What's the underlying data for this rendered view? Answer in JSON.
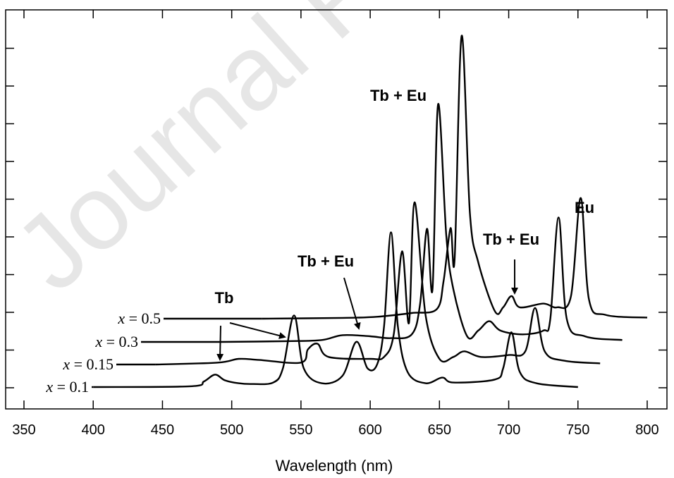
{
  "watermark": "Journal Pre-proof",
  "chart_data": {
    "type": "line",
    "xlabel": "Wavelength (nm)",
    "ylabel": "",
    "xlim": [
      350,
      800
    ],
    "x_ticks": [
      350,
      400,
      450,
      500,
      550,
      600,
      650,
      700,
      750,
      800
    ],
    "y_axis_tick_labels": "none",
    "grid": false,
    "layout_note": "spectra vertically offset and shifted right for each composition (waterfall)",
    "series": [
      {
        "name": "x = 0.1",
        "var": "x",
        "value": "= 0.1",
        "points": [
          [
            400,
            0
          ],
          [
            470,
            0.02
          ],
          [
            480,
            0.15
          ],
          [
            488,
            0.33
          ],
          [
            495,
            0.18
          ],
          [
            505,
            0.1
          ],
          [
            515,
            0.08
          ],
          [
            530,
            0.12
          ],
          [
            537,
            0.5
          ],
          [
            545,
            1.9
          ],
          [
            552,
            0.5
          ],
          [
            565,
            0.1
          ],
          [
            580,
            0.3
          ],
          [
            590,
            1.2
          ],
          [
            598,
            0.5
          ],
          [
            605,
            0.6
          ],
          [
            610,
            1.6
          ],
          [
            615,
            4.1
          ],
          [
            620,
            1.6
          ],
          [
            627,
            0.4
          ],
          [
            640,
            0.1
          ],
          [
            652,
            0.25
          ],
          [
            660,
            0.12
          ],
          [
            690,
            0.2
          ],
          [
            696,
            0.5
          ],
          [
            702,
            1.45
          ],
          [
            708,
            0.4
          ],
          [
            720,
            0.1
          ],
          [
            750,
            0
          ]
        ]
      },
      {
        "name": "x = 0.15",
        "var": "x",
        "value": "= 0.15",
        "points": [
          [
            445,
            0
          ],
          [
            490,
            0.05
          ],
          [
            505,
            0.15
          ],
          [
            520,
            0.12
          ],
          [
            550,
            0.05
          ],
          [
            555,
            0.4
          ],
          [
            562,
            0.55
          ],
          [
            570,
            0.2
          ],
          [
            600,
            0.15
          ],
          [
            610,
            0.2
          ],
          [
            617,
            0.8
          ],
          [
            623,
            3.0
          ],
          [
            628,
            1.1
          ],
          [
            632,
            4.3
          ],
          [
            640,
            1.3
          ],
          [
            650,
            0.15
          ],
          [
            660,
            0.2
          ],
          [
            668,
            0.35
          ],
          [
            680,
            0.2
          ],
          [
            700,
            0.25
          ],
          [
            712,
            0.35
          ],
          [
            719,
            1.5
          ],
          [
            726,
            0.35
          ],
          [
            740,
            0.1
          ],
          [
            766,
            0.03
          ]
        ]
      },
      {
        "name": "x = 0.3",
        "var": "x",
        "value": "= 0.3",
        "points": [
          [
            492,
            0
          ],
          [
            540,
            0.02
          ],
          [
            565,
            0.05
          ],
          [
            580,
            0.18
          ],
          [
            600,
            0.15
          ],
          [
            615,
            0.1
          ],
          [
            630,
            0.2
          ],
          [
            636,
            1.0
          ],
          [
            641,
            3.0
          ],
          [
            645,
            1.4
          ],
          [
            649,
            6.3
          ],
          [
            655,
            2.8
          ],
          [
            660,
            1.4
          ],
          [
            670,
            0.15
          ],
          [
            678,
            0.3
          ],
          [
            686,
            0.55
          ],
          [
            694,
            0.3
          ],
          [
            710,
            0.2
          ],
          [
            725,
            0.3
          ],
          [
            730,
            0.6
          ],
          [
            736,
            3.3
          ],
          [
            742,
            0.6
          ],
          [
            755,
            0.15
          ],
          [
            782,
            0.05
          ]
        ]
      },
      {
        "name": "x = 0.5",
        "var": "x",
        "value": "= 0.5",
        "points": [
          [
            522,
            0
          ],
          [
            580,
            0.02
          ],
          [
            605,
            0.05
          ],
          [
            630,
            0.15
          ],
          [
            648,
            0.25
          ],
          [
            653,
            1.0
          ],
          [
            658,
            2.4
          ],
          [
            661,
            1.6
          ],
          [
            666,
            7.5
          ],
          [
            672,
            2.8
          ],
          [
            678,
            1.5
          ],
          [
            690,
            0.2
          ],
          [
            696,
            0.3
          ],
          [
            702,
            0.6
          ],
          [
            708,
            0.3
          ],
          [
            725,
            0.4
          ],
          [
            735,
            0.3
          ],
          [
            745,
            0.6
          ],
          [
            752,
            3.2
          ],
          [
            758,
            0.5
          ],
          [
            770,
            0.1
          ],
          [
            800,
            0.03
          ]
        ]
      }
    ],
    "annotations": [
      {
        "text": "Tb",
        "points_to": [
          "x = 0.1 peak near 488 nm",
          "x = 0.5 peak near 545 nm"
        ]
      },
      {
        "text": "Tb + Eu",
        "points_to": [
          "x = 0.1 peak near 590 nm"
        ]
      },
      {
        "text": "Tb + Eu",
        "points_to": [
          "x = 0.5 Eu/Tb peak near 650-665 nm"
        ]
      },
      {
        "text": "Tb + Eu",
        "points_to": [
          "x = 0.5 peak near 702 nm"
        ]
      },
      {
        "text": "Eu",
        "points_to": [
          "x = 0.5 peak near 752 nm"
        ]
      }
    ]
  }
}
